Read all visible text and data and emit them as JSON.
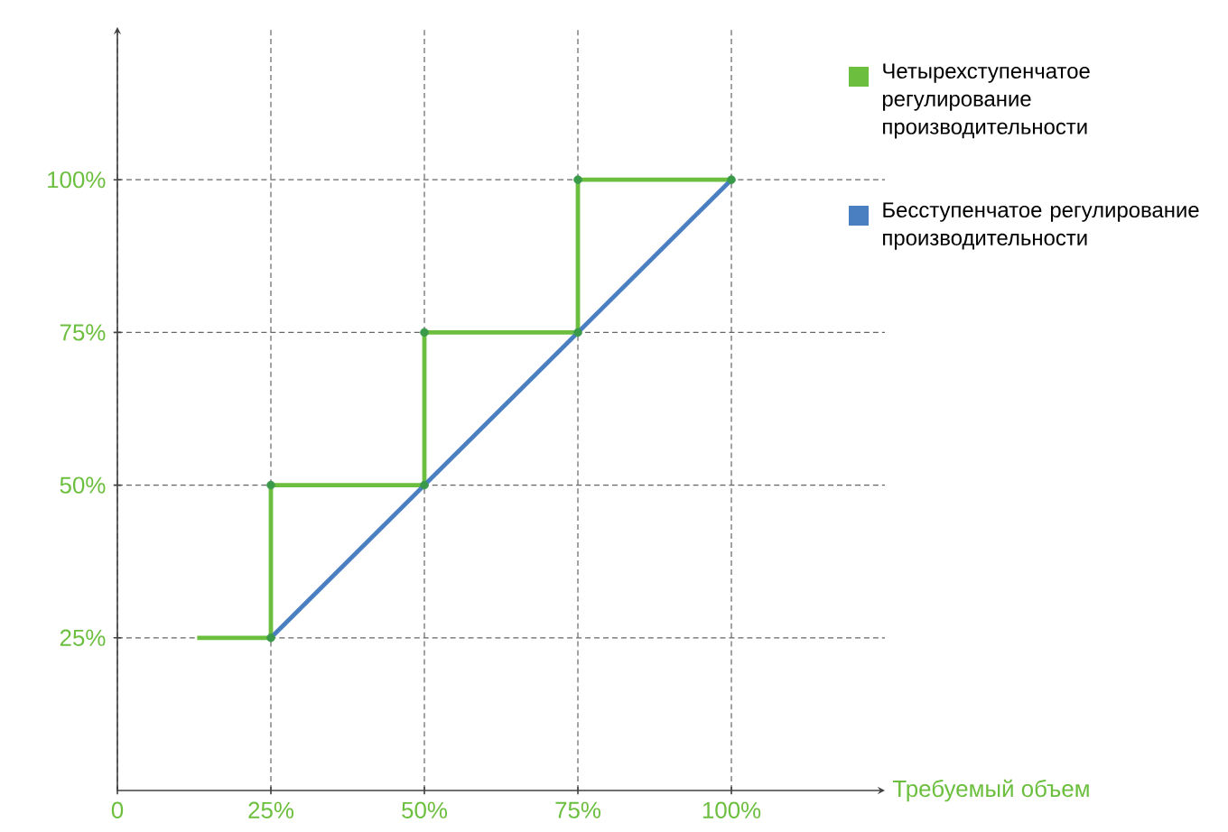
{
  "chart_data": {
    "type": "line",
    "xlabel": "Требуемый объем",
    "series": [
      {
        "name": "Четырехступенчатое регулирование производительности",
        "color": "#6cbf3e",
        "x": [
          13,
          25,
          25,
          50,
          50,
          75,
          75,
          100
        ],
        "values": [
          25,
          25,
          50,
          50,
          75,
          75,
          100,
          100
        ]
      },
      {
        "name": "Бесступенчатое регулирование производительности",
        "color": "#4a7fc1",
        "x": [
          25,
          100
        ],
        "values": [
          25,
          100
        ]
      },
      {
        "type": "scatter",
        "color": "#3a9a4a",
        "marker": "circle",
        "x": [
          25,
          25,
          50,
          50,
          75,
          75,
          100
        ],
        "values": [
          25,
          50,
          50,
          75,
          75,
          100,
          100
        ]
      }
    ],
    "xlim": [
      0,
      125
    ],
    "ylim": [
      0,
      125
    ],
    "xticks": [
      0,
      {
        "value": 25,
        "label": "25%"
      },
      {
        "value": 50,
        "label": "50%"
      },
      {
        "value": 75,
        "label": "75%"
      },
      {
        "value": 100,
        "label": "100%"
      }
    ],
    "yticks": [
      {
        "value": 25,
        "label": "25%"
      },
      {
        "value": 50,
        "label": "50%"
      },
      {
        "value": 75,
        "label": "75%"
      },
      {
        "value": 100,
        "label": "100%"
      }
    ],
    "grid": true,
    "legend": "right",
    "line_style": "solid"
  }
}
